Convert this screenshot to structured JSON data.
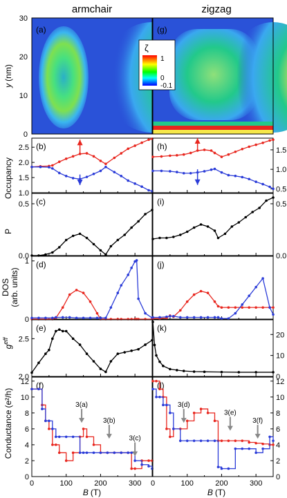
{
  "figure": {
    "column_titles": [
      "armchair",
      "zigzag"
    ],
    "x_label_prefix": "B",
    "x_label_unit": "(T)"
  },
  "colorbar": {
    "symbol": "ζ",
    "top_label": "1",
    "zero_label": "0",
    "bottom_label": "-0.1",
    "colors": [
      "#ff0000",
      "#ffff00",
      "#00ff00",
      "#00ffff",
      "#0000ff"
    ]
  },
  "chart_data": [
    {
      "type": "heatmap",
      "panel_label": "(a)",
      "ylabel_prefix": "y",
      "ylabel_unit": "(nm)",
      "xlim": [
        0,
        350
      ],
      "ylim": [
        0,
        30
      ],
      "yticks": [
        "0",
        "10",
        "20",
        "30"
      ],
      "colors": {
        "background": "#2a52d8",
        "low": "#3aa8f0",
        "mid": "#22c98a",
        "high": "#f6e84a",
        "peak": "#e8261e"
      }
    },
    {
      "type": "heatmap",
      "panel_label": "(g)",
      "xlim": [
        0,
        350
      ],
      "ylim": [
        0,
        30
      ],
      "colors": {
        "background": "#2a52d8",
        "low": "#3aa8f0",
        "mid": "#22c98a",
        "high": "#f6e84a",
        "peak": "#e8261e"
      }
    },
    {
      "type": "line",
      "panel_label": "(b)",
      "ylabel": "Occupancy",
      "xlim": [
        0,
        350
      ],
      "ylim": [
        1.0,
        2.8
      ],
      "yticks": [
        "1.0",
        "1.5",
        "2.0",
        "2.5"
      ],
      "x": [
        0,
        25,
        50,
        60,
        80,
        100,
        120,
        140,
        160,
        180,
        200,
        215,
        240,
        260,
        280,
        300,
        320,
        340,
        350
      ],
      "series": [
        {
          "color": "#e8261e",
          "values": [
            1.85,
            1.87,
            1.88,
            1.9,
            2.02,
            2.12,
            2.2,
            2.28,
            2.3,
            2.2,
            2.05,
            1.95,
            2.15,
            2.3,
            2.45,
            2.55,
            2.65,
            2.75,
            2.78
          ]
        },
        {
          "color": "#2a3bd8",
          "values": [
            1.85,
            1.85,
            1.84,
            1.8,
            1.65,
            1.55,
            1.48,
            1.45,
            1.52,
            1.62,
            1.72,
            1.85,
            1.68,
            1.55,
            1.4,
            1.3,
            1.2,
            1.08,
            1.05
          ]
        }
      ],
      "arrows": [
        {
          "x": 140,
          "y_from": 2.25,
          "y_to": 2.75,
          "color": "#e8261e"
        },
        {
          "x": 140,
          "y_from": 1.6,
          "y_to": 1.25,
          "color": "#2a3bd8"
        }
      ]
    },
    {
      "type": "line",
      "panel_label": "(h)",
      "xlim": [
        0,
        350
      ],
      "ylim": [
        0.4,
        1.8
      ],
      "yticks_right": [
        "0.5",
        "1.0",
        "1.5"
      ],
      "x": [
        0,
        25,
        50,
        70,
        90,
        110,
        130,
        150,
        170,
        180,
        200,
        220,
        240,
        260,
        280,
        300,
        320,
        340,
        350
      ],
      "series": [
        {
          "color": "#e8261e",
          "values": [
            1.32,
            1.33,
            1.35,
            1.36,
            1.38,
            1.42,
            1.48,
            1.5,
            1.48,
            1.42,
            1.32,
            1.38,
            1.45,
            1.52,
            1.58,
            1.63,
            1.68,
            1.74,
            1.76
          ]
        },
        {
          "color": "#2a3bd8",
          "values": [
            0.96,
            0.96,
            0.95,
            0.93,
            0.9,
            0.9,
            0.92,
            0.95,
            0.99,
            1.01,
            0.92,
            0.85,
            0.83,
            0.8,
            0.75,
            0.68,
            0.62,
            0.55,
            0.5
          ]
        }
      ],
      "arrows": [
        {
          "x": 130,
          "y_from": 1.48,
          "y_to": 1.8,
          "color": "#e8261e"
        },
        {
          "x": 130,
          "y_from": 1.0,
          "y_to": 0.6,
          "color": "#2a3bd8"
        }
      ]
    },
    {
      "type": "line",
      "panel_label": "(c)",
      "ylabel": "P",
      "xlim": [
        0,
        350
      ],
      "ylim": [
        0,
        0.6
      ],
      "yticks": [
        "0.0",
        "0.5"
      ],
      "x": [
        0,
        20,
        40,
        60,
        80,
        100,
        120,
        140,
        160,
        180,
        200,
        215,
        230,
        250,
        270,
        290,
        310,
        330,
        350
      ],
      "series": [
        {
          "color": "#000000",
          "values": [
            0.0,
            0.0,
            0.01,
            0.03,
            0.08,
            0.15,
            0.19,
            0.21,
            0.17,
            0.11,
            0.05,
            0.01,
            0.09,
            0.15,
            0.2,
            0.27,
            0.33,
            0.4,
            0.44
          ]
        }
      ]
    },
    {
      "type": "line",
      "panel_label": "(i)",
      "xlim": [
        0,
        350
      ],
      "ylim": [
        0,
        0.6
      ],
      "yticks_right": [
        "0.0",
        "0.5"
      ],
      "x": [
        0,
        20,
        40,
        60,
        80,
        100,
        120,
        140,
        160,
        180,
        190,
        210,
        230,
        250,
        270,
        290,
        310,
        330,
        350
      ],
      "series": [
        {
          "color": "#000000",
          "values": [
            0.16,
            0.17,
            0.17,
            0.18,
            0.2,
            0.23,
            0.27,
            0.3,
            0.28,
            0.24,
            0.17,
            0.21,
            0.28,
            0.32,
            0.37,
            0.42,
            0.46,
            0.53,
            0.56
          ]
        }
      ]
    },
    {
      "type": "line",
      "panel_label": "(d)",
      "ylabel": "DOS",
      "ylabel2": "(arb. units)",
      "xlim": [
        0,
        350
      ],
      "ylim": [
        0,
        1.08
      ],
      "yticks": [
        "0",
        "1"
      ],
      "x": [
        0,
        20,
        40,
        60,
        70,
        90,
        110,
        130,
        150,
        170,
        190,
        200,
        215,
        230,
        250,
        260,
        280,
        290,
        300,
        305,
        310,
        330,
        350
      ],
      "series": [
        {
          "color": "#e8261e",
          "values": [
            0.0,
            0.0,
            0.0,
            0.0,
            0.02,
            0.2,
            0.42,
            0.5,
            0.45,
            0.3,
            0.1,
            0.0,
            0.0,
            0.0,
            0.0,
            0.0,
            0.0,
            0.0,
            0.0,
            0.0,
            0.0,
            0.0,
            0.0
          ]
        },
        {
          "color": "#2a3bd8",
          "values": [
            0.02,
            0.02,
            0.02,
            0.02,
            0.03,
            0.03,
            0.03,
            0.02,
            0.02,
            0.02,
            0.02,
            0.02,
            0.02,
            0.2,
            0.45,
            0.58,
            0.76,
            0.88,
            0.99,
            1.01,
            0.35,
            0.1,
            0.02
          ]
        }
      ]
    },
    {
      "type": "line",
      "panel_label": "(j)",
      "xlim": [
        0,
        350
      ],
      "ylim": [
        0,
        1.08
      ],
      "x": [
        0,
        20,
        40,
        50,
        60,
        80,
        100,
        120,
        140,
        160,
        180,
        190,
        200,
        220,
        240,
        260,
        280,
        300,
        320,
        340,
        350
      ],
      "series": [
        {
          "color": "#e8261e",
          "values": [
            0.01,
            0.01,
            0.02,
            0.06,
            0.04,
            0.15,
            0.3,
            0.42,
            0.48,
            0.45,
            0.3,
            0.22,
            0.2,
            0.2,
            0.2,
            0.2,
            0.2,
            0.2,
            0.2,
            0.2,
            0.2
          ]
        },
        {
          "color": "#2a3bd8",
          "values": [
            0.03,
            0.03,
            0.04,
            0.05,
            0.05,
            0.03,
            0.03,
            0.03,
            0.03,
            0.03,
            0.03,
            0.03,
            0.01,
            0.01,
            0.1,
            0.25,
            0.4,
            0.55,
            0.7,
            0.2,
            0.08
          ]
        }
      ]
    },
    {
      "type": "line",
      "panel_label": "(e)",
      "ylabel_prefix": "g",
      "ylabel_sup": "eff",
      "xlim": [
        0,
        350
      ],
      "ylim": [
        2.0,
        2.75
      ],
      "yticks": [
        "2.0",
        "2.5"
      ],
      "x": [
        0,
        20,
        40,
        50,
        60,
        70,
        80,
        90,
        100,
        120,
        140,
        160,
        180,
        200,
        215,
        230,
        250,
        270,
        290,
        310,
        330,
        350
      ],
      "series": [
        {
          "color": "#000000",
          "values": [
            2.05,
            2.18,
            2.3,
            2.35,
            2.5,
            2.6,
            2.62,
            2.6,
            2.6,
            2.5,
            2.42,
            2.3,
            2.2,
            2.1,
            2.06,
            2.2,
            2.3,
            2.32,
            2.34,
            2.36,
            2.42,
            2.48
          ]
        }
      ]
    },
    {
      "type": "line",
      "panel_label": "(k)",
      "xlim": [
        0,
        350
      ],
      "ylim": [
        0,
        27
      ],
      "yticks_right": [
        "0",
        "10",
        "20"
      ],
      "x": [
        0,
        5,
        10,
        20,
        30,
        50,
        70,
        90,
        120,
        150,
        200,
        250,
        300,
        350
      ],
      "series": [
        {
          "color": "#000000",
          "values": [
            26,
            15,
            10,
            7,
            5,
            3.5,
            3,
            2.6,
            2.3,
            2.2,
            2.1,
            2.0,
            2.0,
            2.0
          ]
        }
      ]
    },
    {
      "type": "line",
      "panel_label": "(f)",
      "ylabel_prefix": "Conductance",
      "ylabel_unit": "(e²/h)",
      "xlim": [
        0,
        350
      ],
      "ylim": [
        0,
        12.5
      ],
      "yticks": [
        "0",
        "2",
        "4",
        "6",
        "8",
        "10",
        "12"
      ],
      "x": [
        0,
        20,
        30,
        40,
        50,
        60,
        70,
        80,
        100,
        120,
        140,
        150,
        160,
        180,
        200,
        220,
        240,
        260,
        280,
        290,
        300,
        320,
        340,
        350
      ],
      "series": [
        {
          "color": "#e8261e",
          "values": [
            11,
            11,
            9,
            7,
            6,
            4,
            4,
            3,
            2,
            3,
            5,
            6,
            5,
            4,
            3,
            3,
            3,
            3,
            3,
            1,
            1,
            2,
            2,
            2
          ]
        },
        {
          "color": "#2a3bd8",
          "values": [
            11,
            11,
            8.5,
            7,
            7,
            6,
            5,
            5,
            5,
            5,
            3,
            3,
            3,
            3,
            3,
            3,
            3,
            3,
            3,
            3,
            2,
            1.5,
            1.3,
            1
          ]
        }
      ],
      "annotations": [
        {
          "text": "3(a)",
          "x": 145,
          "y": 8.5
        },
        {
          "text": "3(b)",
          "x": 225,
          "y": 6.5
        },
        {
          "text": "3(c)",
          "x": 300,
          "y": 4.3
        }
      ]
    },
    {
      "type": "line",
      "panel_label": "(l)",
      "xlim": [
        0,
        350
      ],
      "ylim": [
        0,
        12.5
      ],
      "yticks_right": [
        "0",
        "2",
        "4",
        "6",
        "8",
        "10",
        "12"
      ],
      "x": [
        0,
        10,
        20,
        30,
        40,
        50,
        60,
        80,
        100,
        120,
        140,
        160,
        180,
        190,
        200,
        220,
        240,
        260,
        280,
        300,
        320,
        340,
        350
      ],
      "series": [
        {
          "color": "#e8261e",
          "values": [
            12,
            12,
            11,
            10,
            6,
            5,
            6,
            6,
            7,
            8,
            8.5,
            8,
            7,
            4.5,
            4.5,
            4.5,
            4.5,
            4.5,
            4.3,
            4.2,
            4.1,
            4.0,
            4.0
          ]
        },
        {
          "color": "#2a3bd8",
          "values": [
            11,
            10,
            10,
            9,
            9,
            8,
            6,
            4.5,
            4.5,
            4.5,
            4.5,
            4.5,
            4.5,
            1.2,
            1.0,
            1.0,
            3.5,
            3.5,
            3.5,
            3.0,
            3.5,
            5.0,
            4.5
          ]
        }
      ],
      "annotations": [
        {
          "text": "3(d)",
          "x": 90,
          "y": 8.5
        },
        {
          "text": "3(e)",
          "x": 225,
          "y": 7.5
        },
        {
          "text": "3(f)",
          "x": 305,
          "y": 6.5
        }
      ]
    }
  ]
}
